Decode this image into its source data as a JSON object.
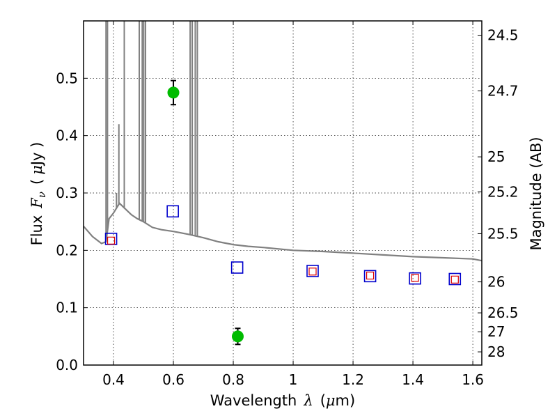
{
  "chart_data": {
    "type": "scatter",
    "title": "",
    "xlabel": "Wavelength",
    "xlabel_symbol": "λ",
    "xlabel_unit_open": "(",
    "xlabel_unit_mu": "μ",
    "xlabel_unit_rest": "m)",
    "ylabel": "Flux",
    "ylabel_symbol": "F",
    "ylabel_symbol_sub": "ν",
    "ylabel_unit_open": "(",
    "ylabel_unit_mu": "μ",
    "ylabel_unit_rest": "Jy )",
    "y2label": "Magnitude (AB)",
    "xlim": [
      0.3,
      1.63
    ],
    "ylim": [
      0.0,
      0.6
    ],
    "grid": true,
    "x_ticks": [
      0.4,
      0.6,
      0.8,
      1.0,
      1.2,
      1.4,
      1.6
    ],
    "x_tick_labels": [
      "0.4",
      "0.6",
      "0.8",
      "1",
      "1.2",
      "1.4",
      "1.6"
    ],
    "y_ticks": [
      0.0,
      0.1,
      0.2,
      0.3,
      0.4,
      0.5
    ],
    "y_tick_labels": [
      "0.0",
      "0.1",
      "0.2",
      "0.3",
      "0.4",
      "0.5"
    ],
    "y2_ticks": [
      {
        "label": "24.5",
        "flux": 0.575
      },
      {
        "label": "24.7",
        "flux": 0.478
      },
      {
        "label": "25",
        "flux": 0.363
      },
      {
        "label": "25.2",
        "flux": 0.302
      },
      {
        "label": "25.5",
        "flux": 0.229
      },
      {
        "label": "26",
        "flux": 0.145
      },
      {
        "label": "26.5",
        "flux": 0.091
      },
      {
        "label": "27",
        "flux": 0.058
      },
      {
        "label": "28",
        "flux": 0.023
      }
    ],
    "series": [
      {
        "kind": "green-detections",
        "color": "#00bb00",
        "points": [
          {
            "x": 0.6,
            "y": 0.475,
            "yerr": 0.021
          },
          {
            "x": 0.815,
            "y": 0.05,
            "yerr": 0.014
          }
        ]
      },
      {
        "kind": "blue-open-squares",
        "color": "#0000cc",
        "points": [
          {
            "x": 0.392,
            "y": 0.22
          },
          {
            "x": 0.598,
            "y": 0.268
          },
          {
            "x": 0.813,
            "y": 0.17
          },
          {
            "x": 1.065,
            "y": 0.164
          },
          {
            "x": 1.257,
            "y": 0.155
          },
          {
            "x": 1.407,
            "y": 0.151
          },
          {
            "x": 1.54,
            "y": 0.15
          }
        ]
      },
      {
        "kind": "red-open-squares",
        "color": "#dd0000",
        "points": [
          {
            "x": 0.392,
            "y": 0.217
          },
          {
            "x": 1.065,
            "y": 0.163
          },
          {
            "x": 1.257,
            "y": 0.156
          },
          {
            "x": 1.407,
            "y": 0.152
          },
          {
            "x": 1.54,
            "y": 0.149
          }
        ]
      },
      {
        "kind": "model-spectrum",
        "color": "#808080",
        "continuum": [
          [
            0.3,
            0.242
          ],
          [
            0.33,
            0.224
          ],
          [
            0.36,
            0.212
          ],
          [
            0.375,
            0.215
          ],
          [
            0.385,
            0.255
          ],
          [
            0.4,
            0.265
          ],
          [
            0.42,
            0.282
          ],
          [
            0.44,
            0.272
          ],
          [
            0.46,
            0.262
          ],
          [
            0.48,
            0.255
          ],
          [
            0.5,
            0.25
          ],
          [
            0.53,
            0.24
          ],
          [
            0.56,
            0.236
          ],
          [
            0.6,
            0.233
          ],
          [
            0.65,
            0.228
          ],
          [
            0.7,
            0.222
          ],
          [
            0.75,
            0.215
          ],
          [
            0.8,
            0.21
          ],
          [
            0.85,
            0.207
          ],
          [
            0.9,
            0.205
          ],
          [
            1.0,
            0.2
          ],
          [
            1.1,
            0.198
          ],
          [
            1.2,
            0.195
          ],
          [
            1.3,
            0.192
          ],
          [
            1.4,
            0.189
          ],
          [
            1.5,
            0.187
          ],
          [
            1.6,
            0.185
          ],
          [
            1.63,
            0.182
          ]
        ],
        "emission_lines": [
          {
            "x": 0.375,
            "peak": 0.6
          },
          {
            "x": 0.38,
            "peak": 0.6
          },
          {
            "x": 0.41,
            "peak": 0.3
          },
          {
            "x": 0.418,
            "peak": 0.42
          },
          {
            "x": 0.436,
            "peak": 0.6
          },
          {
            "x": 0.486,
            "peak": 0.6
          },
          {
            "x": 0.496,
            "peak": 0.6
          },
          {
            "x": 0.501,
            "peak": 0.6
          },
          {
            "x": 0.507,
            "peak": 0.6
          },
          {
            "x": 0.656,
            "peak": 0.6
          },
          {
            "x": 0.663,
            "peak": 0.6
          },
          {
            "x": 0.673,
            "peak": 0.6
          },
          {
            "x": 0.68,
            "peak": 0.6
          }
        ]
      }
    ]
  }
}
